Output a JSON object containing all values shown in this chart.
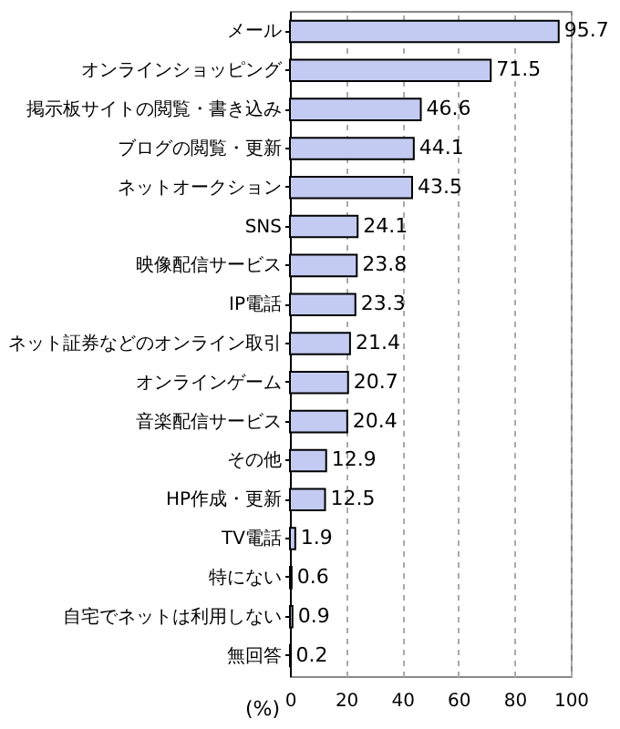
{
  "chart_data": {
    "type": "bar",
    "orientation": "horizontal",
    "xlabel": "(%)",
    "categories": [
      "メール",
      "オンラインショッピング",
      "掲示板サイトの閲覧・書き込み",
      "ブログの閲覧・更新",
      "ネットオークション",
      "SNS",
      "映像配信サービス",
      "IP電話",
      "ネット証券などのオンライン取引",
      "オンラインゲーム",
      "音楽配信サービス",
      "その他",
      "HP作成・更新",
      "TV電話",
      "特にない",
      "自宅でネットは利用しない",
      "無回答"
    ],
    "values": [
      95.7,
      71.5,
      46.6,
      44.1,
      43.5,
      24.1,
      23.8,
      23.3,
      21.4,
      20.7,
      20.4,
      12.9,
      12.5,
      1.9,
      0.6,
      0.9,
      0.2
    ],
    "color": "#c3cbf3",
    "xlim": [
      0,
      100
    ],
    "xticks": [
      0,
      20,
      40,
      60,
      80,
      100
    ],
    "grid": "x",
    "data_labels": true
  }
}
